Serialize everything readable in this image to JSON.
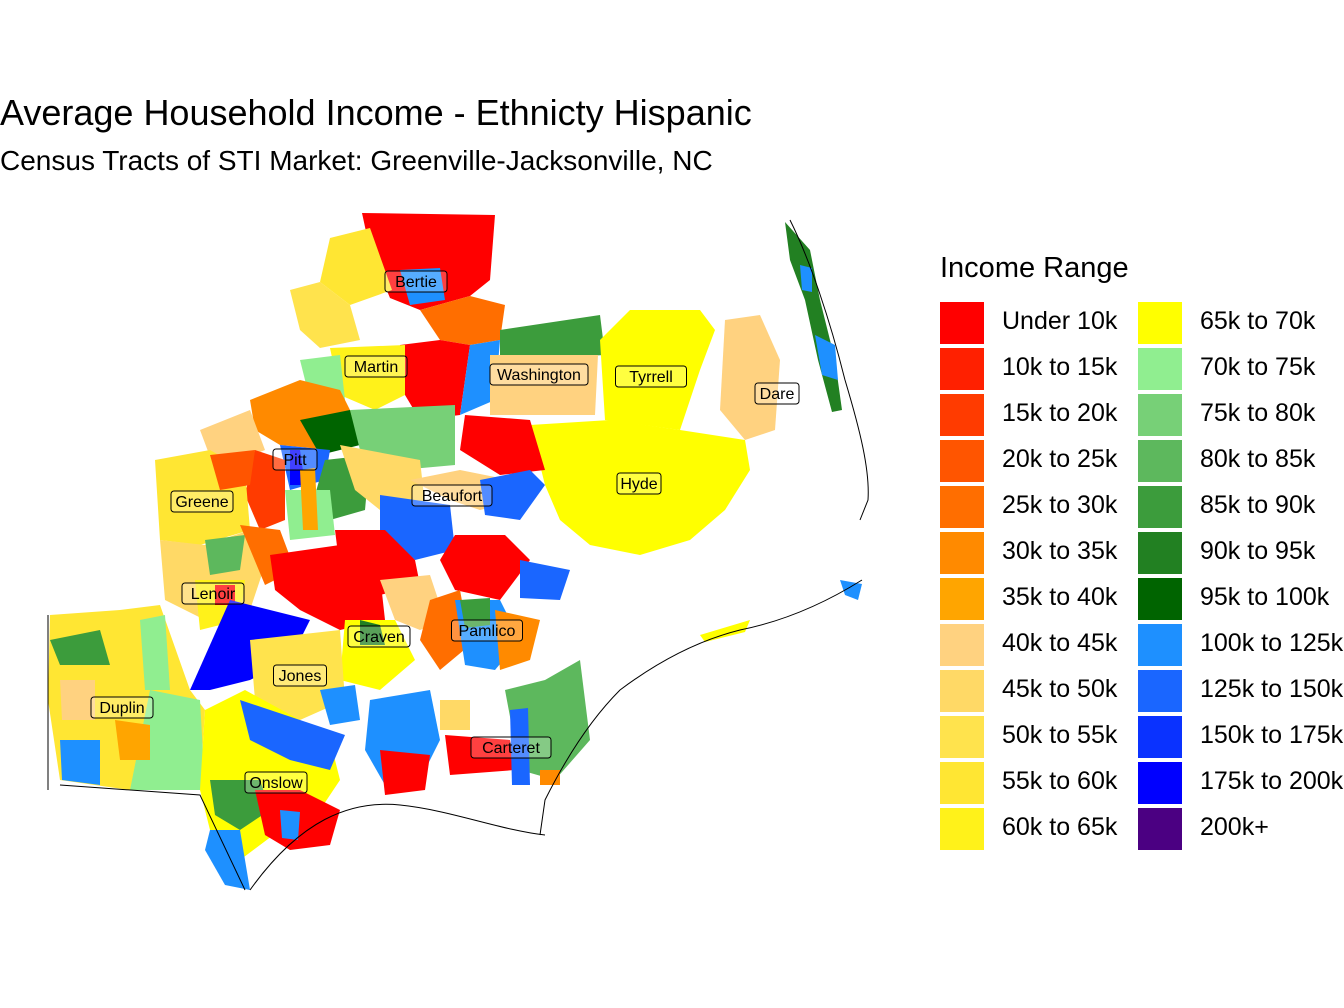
{
  "title": "Average Household Income - Ethnicty Hispanic",
  "subtitle": "Census Tracts of STI Market: Greenville-Jacksonville, NC",
  "legend": {
    "title": "Income Range",
    "items": [
      {
        "label": "Under 10k",
        "color": "#FF0000"
      },
      {
        "label": "10k to 15k",
        "color": "#FF2000"
      },
      {
        "label": "15k to 20k",
        "color": "#FF3B00"
      },
      {
        "label": "20k to 25k",
        "color": "#FF5500"
      },
      {
        "label": "25k to 30k",
        "color": "#FF6E00"
      },
      {
        "label": "30k to 35k",
        "color": "#FF8A00"
      },
      {
        "label": "35k to 40k",
        "color": "#FFA500"
      },
      {
        "label": "40k to 45k",
        "color": "#FFD280"
      },
      {
        "label": "45k to 50k",
        "color": "#FFD966"
      },
      {
        "label": "50k to 55k",
        "color": "#FFE34D"
      },
      {
        "label": "55k to 60k",
        "color": "#FFE633"
      },
      {
        "label": "60k to 65k",
        "color": "#FFF21A"
      },
      {
        "label": "65k to 70k",
        "color": "#FFFF00"
      },
      {
        "label": "70k to 75k",
        "color": "#90EE90"
      },
      {
        "label": "75k to 80k",
        "color": "#77D077"
      },
      {
        "label": "80k to 85k",
        "color": "#5DB85D"
      },
      {
        "label": "85k to 90k",
        "color": "#3C9C3C"
      },
      {
        "label": "90k to 95k",
        "color": "#228022"
      },
      {
        "label": "95k to 100k",
        "color": "#006400"
      },
      {
        "label": "100k to 125k",
        "color": "#1E90FF"
      },
      {
        "label": "125k to 150k",
        "color": "#1A66FF"
      },
      {
        "label": "150k to 175k",
        "color": "#0A32FF"
      },
      {
        "label": "175k to 200k",
        "color": "#0000FF"
      },
      {
        "label": "200k+",
        "color": "#4B0082"
      }
    ]
  },
  "counties": [
    {
      "name": "Bertie"
    },
    {
      "name": "Martin"
    },
    {
      "name": "Washington"
    },
    {
      "name": "Tyrrell"
    },
    {
      "name": "Dare"
    },
    {
      "name": "Pitt"
    },
    {
      "name": "Greene"
    },
    {
      "name": "Beaufort"
    },
    {
      "name": "Hyde"
    },
    {
      "name": "Lenoir"
    },
    {
      "name": "Craven"
    },
    {
      "name": "Pamlico"
    },
    {
      "name": "Jones"
    },
    {
      "name": "Duplin"
    },
    {
      "name": "Carteret"
    },
    {
      "name": "Onslow"
    }
  ]
}
